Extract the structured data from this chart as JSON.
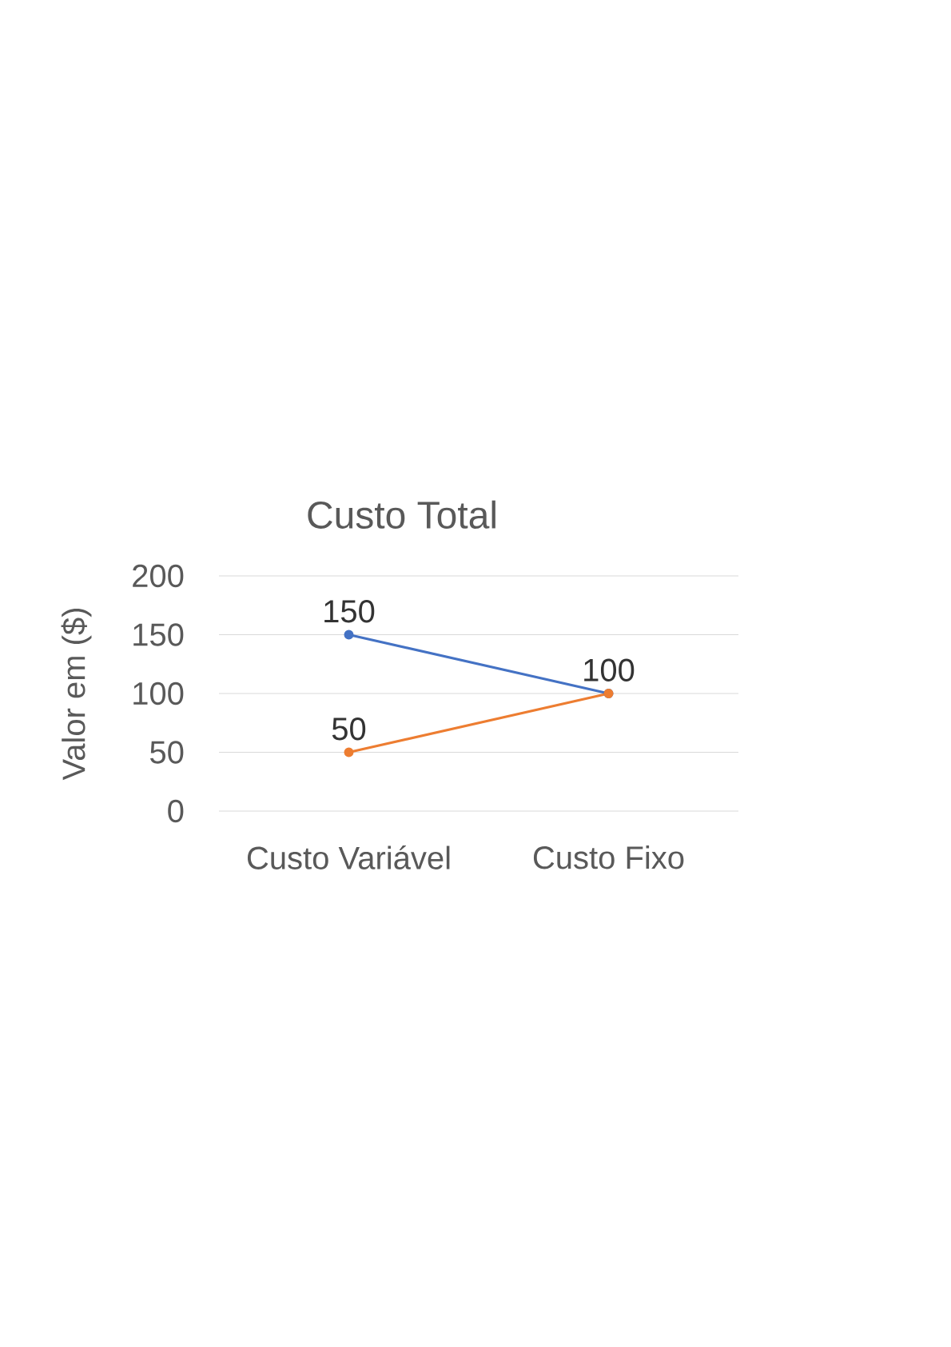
{
  "chart_data": {
    "type": "line",
    "title": "Custo Total",
    "ylabel": "Valor em ($)",
    "categories": [
      "Custo Variável",
      "Custo Fixo"
    ],
    "series": [
      {
        "color": "#4472c4",
        "values": [
          150,
          100
        ],
        "value_labels": [
          "150",
          "100"
        ]
      },
      {
        "color": "#ed7d31",
        "values": [
          50,
          100
        ],
        "value_labels": [
          "50",
          null
        ]
      }
    ],
    "ylim": [
      0,
      200
    ],
    "yticks": [
      0,
      50,
      100,
      150,
      200
    ],
    "grid": "y",
    "marker": "circle",
    "line_style": "solid"
  }
}
